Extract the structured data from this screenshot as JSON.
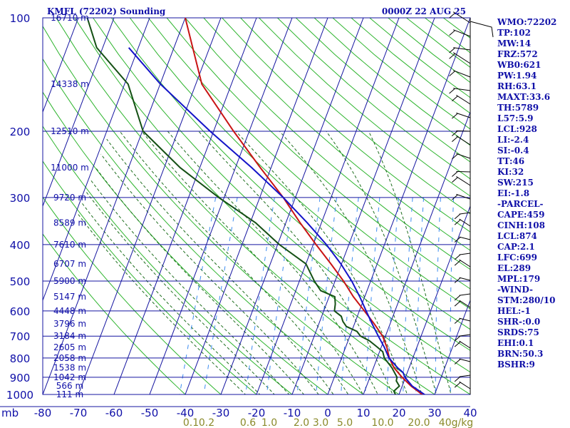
{
  "header": {
    "station": "KMFL (72202) Sounding",
    "valid_time": "0000Z 22 AUG 25"
  },
  "indices": [
    "WMO:72202",
    "TP:102",
    "MW:14",
    "FRZ:572",
    "WB0:621",
    "PW:1.94",
    "RH:63.1",
    "MAXT:33.6",
    "TH:5789",
    "L57:5.9",
    "LCL:928",
    "LI:-2.4",
    "SI:-0.4",
    "TT:46",
    "KI:32",
    "SW:215",
    "EI:-1.8",
    "-PARCEL-",
    "CAPE:459",
    "CINH:108",
    "LCL:874",
    "CAP:2.1",
    "LFC:699",
    "EL:289",
    "MPL:179",
    "-WIND-",
    "STM:280/10",
    "HEL:-1",
    "SHR-:0.0",
    "SRDS:75",
    "EHI:0.1",
    "BRN:50.3",
    "BSHR:9"
  ],
  "colors": {
    "grid": "#1414a0",
    "dry_adiabat": "#2db42d",
    "moist_adiabat": "#1e6e1e",
    "mixing_ratio": "#3c8cf0",
    "temperature": "#c81414",
    "dewpoint": "#145014",
    "parcel": "#1414c8",
    "wind_barb": "#000000"
  },
  "chart_data": {
    "type": "line",
    "subtype": "skew-T log-P sounding",
    "y_axis": {
      "label": "mb",
      "scale": "log",
      "range": [
        1000,
        100
      ],
      "ticks": [
        100,
        200,
        300,
        400,
        500,
        600,
        700,
        800,
        900,
        1000
      ]
    },
    "x_axis": {
      "range": [
        -80,
        40
      ],
      "ticks": [
        -80,
        -70,
        -60,
        -50,
        -40,
        -30,
        -20,
        -10,
        0,
        10,
        20,
        30,
        40
      ]
    },
    "height_labels": [
      {
        "p": 100,
        "label": "16710 m"
      },
      {
        "p": 150,
        "label": "14338 m"
      },
      {
        "p": 200,
        "label": "12510 m"
      },
      {
        "p": 250,
        "label": "11000 m"
      },
      {
        "p": 300,
        "label": "9720 m"
      },
      {
        "p": 350,
        "label": "8589 m"
      },
      {
        "p": 400,
        "label": "7610 m"
      },
      {
        "p": 450,
        "label": "6707 m"
      },
      {
        "p": 500,
        "label": "5900 m"
      },
      {
        "p": 550,
        "label": "5147 m"
      },
      {
        "p": 600,
        "label": "4448 m"
      },
      {
        "p": 650,
        "label": "3796 m"
      },
      {
        "p": 700,
        "label": "3184 m"
      },
      {
        "p": 750,
        "label": "2605 m"
      },
      {
        "p": 800,
        "label": "2058 m"
      },
      {
        "p": 850,
        "label": "1538 m"
      },
      {
        "p": 900,
        "label": "1042 m"
      },
      {
        "p": 950,
        "label": "566 m"
      },
      {
        "p": 1000,
        "label": "111 m"
      }
    ],
    "mixing_ratio_labels": [
      "0.1",
      "0.2",
      "0.6",
      "1.0",
      "2.0",
      "3.0",
      "5.0",
      "10.0",
      "20.0",
      "40g/kg"
    ],
    "grid": true,
    "series": [
      {
        "id": "temperature",
        "points": [
          [
            1010,
            28.0
          ],
          [
            1000,
            26.5
          ],
          [
            950,
            22.5
          ],
          [
            900,
            19.0
          ],
          [
            850,
            15.8
          ],
          [
            800,
            13.4
          ],
          [
            750,
            11.6
          ],
          [
            700,
            9.2
          ],
          [
            650,
            5.6
          ],
          [
            600,
            1.4
          ],
          [
            550,
            -3.2
          ],
          [
            500,
            -7.6
          ],
          [
            450,
            -13.0
          ],
          [
            400,
            -19.2
          ],
          [
            350,
            -26.0
          ],
          [
            300,
            -33.4
          ],
          [
            250,
            -43.0
          ],
          [
            200,
            -54.4
          ],
          [
            150,
            -68.3
          ],
          [
            100,
            -80.0
          ]
        ]
      },
      {
        "id": "dewpoint",
        "points": [
          [
            1010,
            20.0
          ],
          [
            1000,
            19.0
          ],
          [
            980,
            18.2
          ],
          [
            950,
            19.2
          ],
          [
            920,
            17.8
          ],
          [
            900,
            17.6
          ],
          [
            850,
            15.2
          ],
          [
            800,
            12.0
          ],
          [
            770,
            10.9
          ],
          [
            750,
            9.0
          ],
          [
            720,
            6.0
          ],
          [
            700,
            3.0
          ],
          [
            680,
            1.5
          ],
          [
            660,
            -2.0
          ],
          [
            640,
            -3.5
          ],
          [
            620,
            -4.5
          ],
          [
            600,
            -7.0
          ],
          [
            575,
            -7.5
          ],
          [
            550,
            -8.4
          ],
          [
            530,
            -13.0
          ],
          [
            500,
            -15.8
          ],
          [
            450,
            -20.0
          ],
          [
            400,
            -29.5
          ],
          [
            350,
            -38.5
          ],
          [
            300,
            -51.5
          ],
          [
            250,
            -65.5
          ],
          [
            200,
            -79.8
          ],
          [
            150,
            -89.0
          ],
          [
            120,
            -101.7
          ],
          [
            100,
            -107.5
          ]
        ]
      },
      {
        "id": "parcel",
        "points": [
          [
            1010,
            28.0
          ],
          [
            950,
            22.8
          ],
          [
            900,
            19.8
          ],
          [
            874,
            18.8
          ],
          [
            850,
            16.8
          ],
          [
            800,
            13.3
          ],
          [
            750,
            10.9
          ],
          [
            700,
            8.0
          ],
          [
            650,
            5.0
          ],
          [
            600,
            1.9
          ],
          [
            550,
            -1.4
          ],
          [
            500,
            -5.3
          ],
          [
            450,
            -10.2
          ],
          [
            400,
            -16.3
          ],
          [
            350,
            -24.0
          ],
          [
            300,
            -33.4
          ],
          [
            250,
            -45.4
          ],
          [
            200,
            -61.0
          ],
          [
            150,
            -79.9
          ],
          [
            120,
            -92.7
          ]
        ]
      }
    ]
  }
}
